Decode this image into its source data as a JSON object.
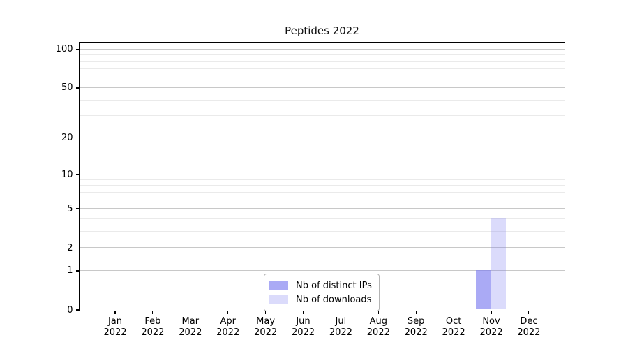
{
  "chart_data": {
    "type": "bar",
    "title": "Peptides 2022",
    "x_year": "2022",
    "categories": [
      "Jan",
      "Feb",
      "Mar",
      "Apr",
      "May",
      "Jun",
      "Jul",
      "Aug",
      "Sep",
      "Oct",
      "Nov",
      "Dec"
    ],
    "series": [
      {
        "name": "Nb of distinct IPs",
        "color": "rgba(125,125,240,0.65)",
        "values": [
          0,
          0,
          0,
          0,
          0,
          0,
          0,
          0,
          0,
          0,
          1,
          0
        ]
      },
      {
        "name": "Nb of downloads",
        "color": "rgba(125,125,240,0.28)",
        "values": [
          0,
          0,
          0,
          0,
          0,
          0,
          0,
          0,
          0,
          0,
          4,
          0
        ]
      }
    ],
    "y_axis": {
      "scale": "log1p",
      "major_ticks": [
        0,
        1,
        2,
        5,
        10,
        20,
        50,
        100
      ],
      "minor_ticks": [
        3,
        4,
        6,
        7,
        8,
        9,
        30,
        40,
        60,
        70,
        80,
        90
      ],
      "max": 100
    },
    "x_axis": {
      "tick_years": "2022"
    },
    "legend": {
      "position": "bottom-center"
    },
    "grid": {
      "major_color": "#c8c8c8",
      "minor_color": "#eaeaea"
    }
  }
}
